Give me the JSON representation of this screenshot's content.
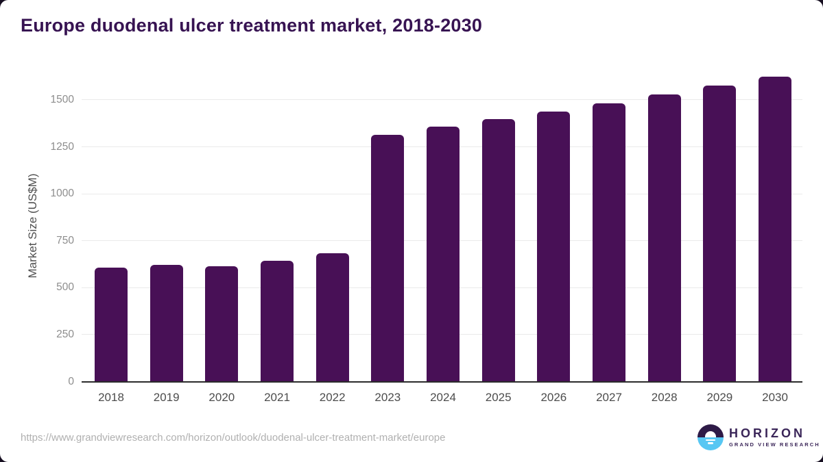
{
  "page": {
    "title": "Europe duodenal ulcer treatment market, 2018-2030"
  },
  "chart_data": {
    "type": "bar",
    "title": "Europe duodenal ulcer treatment market, 2018-2030",
    "categories": [
      "2018",
      "2019",
      "2020",
      "2021",
      "2022",
      "2023",
      "2024",
      "2025",
      "2026",
      "2027",
      "2028",
      "2029",
      "2030"
    ],
    "values": [
      605,
      621,
      615,
      645,
      685,
      1313,
      1357,
      1399,
      1438,
      1483,
      1528,
      1575,
      1622
    ],
    "xlabel": "",
    "ylabel": "Market Size (US$M)",
    "ylim": [
      0,
      1660
    ],
    "yticks": [
      0,
      250,
      500,
      750,
      1000,
      1250,
      1500
    ],
    "grid": true,
    "legend_position": "none",
    "bar_color": "#481056"
  },
  "footer": {
    "source_url": "https://www.grandviewresearch.com/horizon/outlook/duodenal-ulcer-treatment-market/europe",
    "logo": {
      "brand": "HORIZON",
      "subtitle": "GRAND VIEW RESEARCH"
    }
  },
  "colors": {
    "title_text": "#371352",
    "bar": "#481056",
    "axis_line": "#2b2b2b",
    "gridline": "#eaeaea",
    "y_tick_label": "#8d8d8d",
    "x_tick_label": "#4c4c4c",
    "y_axis_title": "#4f4f4f",
    "url_text": "#b0b0b0",
    "logo_purple": "#3a2558",
    "logo_blue": "#58c7f3"
  }
}
